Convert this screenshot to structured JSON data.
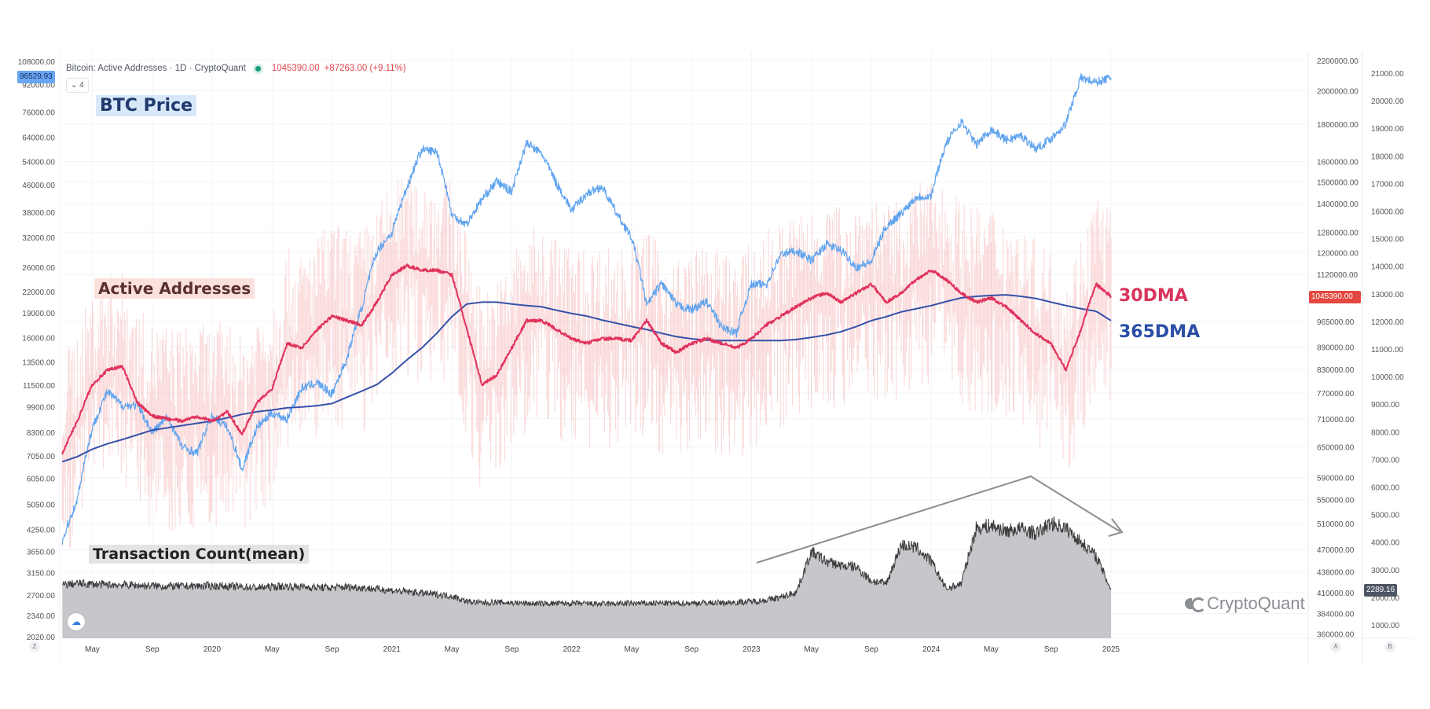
{
  "header": {
    "title": "Bitcoin: Active Addresses · 1D · CryptoQuant",
    "last_value": "1045390.00",
    "change": "+87263.00 (+9.11%)",
    "indicator_count_button": "⌄ 4"
  },
  "annotations": {
    "btc_price": "BTC Price",
    "active_addresses": "Active Addresses",
    "transaction_count": "Transaction Count(mean)",
    "dma30": "30DMA",
    "dma365": "365DMA"
  },
  "price_tags": {
    "btc": "96529.93",
    "active_addresses": "1045390.00",
    "transaction_count": "2289.16"
  },
  "watermark": "CryptoQuant",
  "axis_buttons": {
    "left": "Z",
    "a": "A",
    "b": "B"
  },
  "icons": {
    "cloud": "cloud-icon",
    "legend_toggle": "chevron-down-icon"
  },
  "colors": {
    "btc": "#5ea3ef",
    "dma30": "#e0325c",
    "dma365": "#3451a8",
    "raw": "#f6b6b6",
    "tx_line": "#3b3b3b",
    "tx_fill": "#c6c7cb",
    "arrow": "#8d8d8d"
  },
  "chart_data": {
    "type": "line",
    "title": "Bitcoin: Active Addresses · 1D · CryptoQuant",
    "x_ticks": [
      "May",
      "Sep",
      "2020",
      "May",
      "Sep",
      "2021",
      "May",
      "Sep",
      "2022",
      "May",
      "Sep",
      "2023",
      "May",
      "Sep",
      "2024",
      "May",
      "Sep",
      "2025"
    ],
    "left_axis": {
      "scale": "log",
      "ticks": [
        "108000.00",
        "92000.00",
        "76000.00",
        "64000.00",
        "54000.00",
        "46000.00",
        "38000.00",
        "32000.00",
        "26000.00",
        "22000.00",
        "19000.00",
        "16000.00",
        "13500.00",
        "11500.00",
        "9900.00",
        "8300.00",
        "7050.00",
        "6050.00",
        "5050.00",
        "4250.00",
        "3650.00",
        "3150.00",
        "2700.00",
        "2340.00",
        "2020.00"
      ]
    },
    "axis_a": {
      "scale": "log",
      "ticks": [
        "2200000.00",
        "2000000.00",
        "1800000.00",
        "1600000.00",
        "1500000.00",
        "1400000.00",
        "1280000.00",
        "1200000.00",
        "1120000.00",
        "965000.00",
        "890000.00",
        "830000.00",
        "770000.00",
        "710000.00",
        "650000.00",
        "590000.00",
        "550000.00",
        "510000.00",
        "470000.00",
        "438000.00",
        "410000.00",
        "384000.00",
        "360000.00"
      ]
    },
    "axis_b": {
      "scale": "linear",
      "ticks": [
        "21000.00",
        "20000.00",
        "19000.00",
        "18000.00",
        "17000.00",
        "16000.00",
        "15000.00",
        "14000.00",
        "13000.00",
        "12000.00",
        "11000.00",
        "10000.00",
        "9000.00",
        "8000.00",
        "7000.00",
        "6000.00",
        "5000.00",
        "4000.00",
        "3000.00",
        "2000.00",
        "1000.00"
      ]
    },
    "x_start": "2019-03",
    "x_interval": "month",
    "series": [
      {
        "name": "BTC Price",
        "axis": "left",
        "values": [
          3900,
          5200,
          8500,
          11000,
          10000,
          10000,
          8300,
          9200,
          7500,
          7200,
          9300,
          8600,
          6400,
          8600,
          9500,
          9100,
          11300,
          11700,
          10800,
          13800,
          19700,
          29000,
          33000,
          45000,
          58800,
          57700,
          37300,
          35000,
          41500,
          47100,
          43800,
          61300,
          57000,
          46300,
          38500,
          43200,
          45500,
          37700,
          31800,
          19900,
          23300,
          20000,
          19400,
          20500,
          17200,
          16500,
          23100,
          23100,
          28500,
          29200,
          27200,
          30500,
          29200,
          26000,
          27000,
          34500,
          37700,
          42300,
          42600,
          61200,
          71300,
          60600,
          67500,
          62700,
          64600,
          59000,
          63300,
          70200,
          96400,
          93400,
          96529.93
        ]
      },
      {
        "name": "Active Addresses 30DMA",
        "axis": "A",
        "values": [
          637000,
          705000,
          791000,
          827000,
          838000,
          747000,
          716000,
          710000,
          705000,
          716000,
          705000,
          726000,
          676000,
          747000,
          780000,
          901000,
          888000,
          941000,
          982000,
          968000,
          955000,
          1026000,
          1118000,
          1151000,
          1135000,
          1135000,
          1118000,
          941000,
          791000,
          815000,
          888000,
          968000,
          968000,
          941000,
          914000,
          901000,
          914000,
          914000,
          909000,
          968000,
          901000,
          875000,
          901000,
          914000,
          901000,
          888000,
          914000,
          955000,
          982000,
          1011000,
          1040000,
          1056000,
          1026000,
          1056000,
          1086000,
          1026000,
          1056000,
          1102000,
          1135000,
          1102000,
          1056000,
          1026000,
          1040000,
          1011000,
          968000,
          928000,
          901000,
          827000,
          941000,
          1086000,
          1045390
        ]
      },
      {
        "name": "Active Addresses 365DMA",
        "axis": "A",
        "values": [
          620000,
          630000,
          645000,
          656000,
          665000,
          675000,
          685000,
          690000,
          695000,
          700000,
          705000,
          712000,
          720000,
          726000,
          730000,
          735000,
          737000,
          740000,
          745000,
          760000,
          775000,
          791000,
          820000,
          855000,
          888000,
          930000,
          980000,
          1020000,
          1026000,
          1026000,
          1020000,
          1015000,
          1011000,
          1000000,
          990000,
          982000,
          970000,
          960000,
          950000,
          941000,
          930000,
          920000,
          914000,
          910000,
          909000,
          909000,
          909000,
          909000,
          909000,
          912000,
          918000,
          925000,
          935000,
          950000,
          968000,
          980000,
          995000,
          1005000,
          1015000,
          1028000,
          1040000,
          1045000,
          1048000,
          1050000,
          1045000,
          1038000,
          1026000,
          1015000,
          1005000,
          997000,
          968000
        ]
      },
      {
        "name": "Transaction Count(mean)",
        "axis": "B",
        "values": [
          2450,
          2500,
          2480,
          2450,
          2460,
          2430,
          2420,
          2400,
          2400,
          2410,
          2420,
          2400,
          2380,
          2350,
          2380,
          2400,
          2380,
          2360,
          2350,
          2380,
          2350,
          2300,
          2250,
          2200,
          2150,
          2100,
          2050,
          1850,
          1800,
          1820,
          1800,
          1780,
          1770,
          1780,
          1780,
          1770,
          1760,
          1770,
          1780,
          1780,
          1790,
          1780,
          1790,
          1800,
          1800,
          1820,
          1850,
          1900,
          2000,
          2200,
          3650,
          3300,
          3150,
          3100,
          2600,
          2500,
          3900,
          3800,
          3300,
          2300,
          2500,
          4500,
          4600,
          4400,
          4500,
          4300,
          4700,
          4500,
          4000,
          3500,
          2289.16
        ]
      }
    ],
    "grid": true,
    "legend": "top-left"
  }
}
